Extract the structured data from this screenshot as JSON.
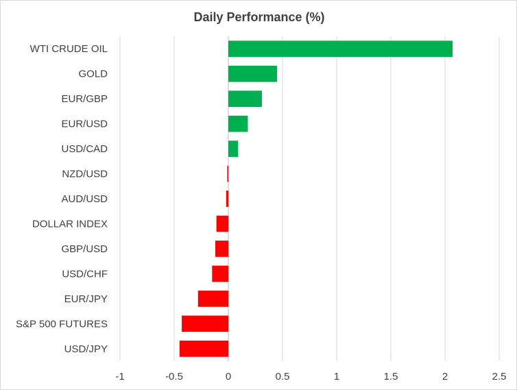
{
  "chart_data": {
    "type": "bar",
    "orientation": "horizontal",
    "title": "Daily Performance (%)",
    "xlabel": "",
    "ylabel": "",
    "categories": [
      "WTI CRUDE OIL",
      "GOLD",
      "EUR/GBP",
      "EUR/USD",
      "USD/CAD",
      "NZD/USD",
      "AUD/USD",
      "DOLLAR INDEX",
      "GBP/USD",
      "USD/CHF",
      "EUR/JPY",
      "S&P 500 FUTURES",
      "USD/JPY"
    ],
    "values": [
      2.07,
      0.45,
      0.31,
      0.18,
      0.09,
      -0.01,
      -0.02,
      -0.11,
      -0.12,
      -0.15,
      -0.28,
      -0.43,
      -0.45
    ],
    "xlim": [
      -1,
      2.5
    ],
    "xticks": [
      "-1",
      "-0.5",
      "0",
      "0.5",
      "1",
      "1.5",
      "2",
      "2.5"
    ],
    "xtick_values": [
      -1,
      -0.5,
      0,
      0.5,
      1,
      1.5,
      2,
      2.5
    ],
    "grid": "vertical",
    "legend": "none",
    "colors": {
      "positive": "#00b050",
      "negative": "#ff0000",
      "grid": "#d9d9d9",
      "axis": "#bfbfbf",
      "text": "#404040"
    }
  }
}
